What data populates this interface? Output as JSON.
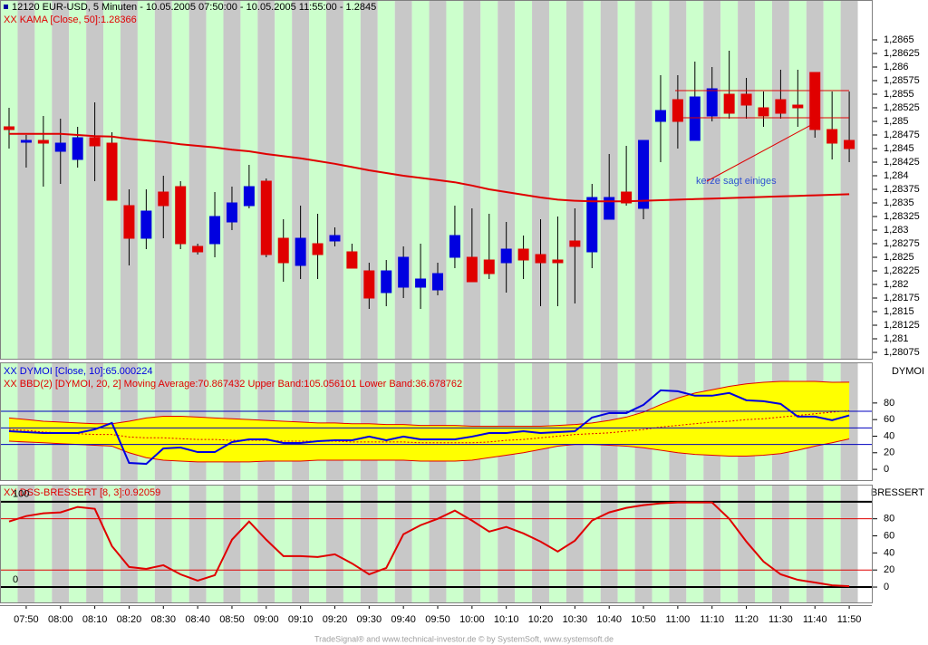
{
  "chart_data": [
    {
      "type": "candlestick",
      "title": "12120  EUR-USD, 5 Minuten - 10.05.2005 07:50:00 - 10.05.2005 11:55:00 - 1.2845",
      "annotation": "kerze sagt  einiges",
      "categories": [
        null,
        "07:50",
        null,
        "08:00",
        null,
        "08:10",
        null,
        "08:20",
        null,
        "08:30",
        null,
        "08:40",
        null,
        "08:50",
        null,
        "09:00",
        null,
        "09:10",
        null,
        "09:20",
        null,
        "09:30",
        null,
        "09:40",
        null,
        "09:50",
        null,
        "10:00",
        null,
        "10:10",
        null,
        "10:20",
        null,
        "10:30",
        null,
        "10:40",
        null,
        "10:50",
        null,
        "11:00",
        null,
        "11:10",
        null,
        "11:20",
        null,
        "11:30",
        null,
        "11:40",
        null,
        "11:50"
      ],
      "open": [
        1.2849,
        1.28465,
        1.28465,
        1.28445,
        1.2843,
        1.2847,
        1.2846,
        1.28345,
        1.28285,
        1.2837,
        1.2838,
        1.2827,
        1.28275,
        1.28315,
        1.28345,
        1.2839,
        1.28285,
        1.28235,
        1.28275,
        1.2828,
        1.2826,
        1.28225,
        1.28185,
        1.28195,
        1.28195,
        1.2819,
        1.2825,
        1.2825,
        1.28245,
        1.2824,
        1.28265,
        1.28255,
        1.28245,
        1.2828,
        1.2826,
        1.2832,
        1.2837,
        1.2834,
        1.285,
        1.2854,
        1.28465,
        1.2851,
        1.2855,
        1.2855,
        1.28525,
        1.2854,
        1.2853,
        1.2859,
        1.28485,
        1.28465
      ],
      "high": [
        1.28525,
        1.28475,
        1.2851,
        1.28505,
        1.2849,
        1.28535,
        1.2848,
        1.28375,
        1.28375,
        1.284,
        1.2839,
        1.28275,
        1.2837,
        1.2838,
        1.2842,
        1.28395,
        1.2832,
        1.28345,
        1.2833,
        1.28305,
        1.28275,
        1.2824,
        1.28245,
        1.2827,
        1.28275,
        1.2824,
        1.28345,
        1.2834,
        1.2833,
        1.28315,
        1.2829,
        1.2832,
        1.28325,
        1.2834,
        1.28385,
        1.2844,
        1.28455,
        1.28465,
        1.28585,
        1.28585,
        1.2861,
        1.286,
        1.2863,
        1.2858,
        1.28555,
        1.28595,
        1.28595,
        1.2859,
        1.28555,
        1.28555
      ],
      "low": [
        1.2845,
        1.28415,
        1.2838,
        1.28385,
        1.28415,
        1.2839,
        1.28355,
        1.28235,
        1.28265,
        1.28285,
        1.28265,
        1.28255,
        1.2825,
        1.283,
        1.2834,
        1.2825,
        1.28205,
        1.2821,
        1.2821,
        1.2827,
        1.2823,
        1.28155,
        1.2816,
        1.28175,
        1.28155,
        1.2818,
        1.2823,
        1.28205,
        1.2821,
        1.28185,
        1.2821,
        1.2816,
        1.2816,
        1.28165,
        1.2823,
        1.2832,
        1.28345,
        1.2832,
        1.28425,
        1.2845,
        1.28465,
        1.285,
        1.28505,
        1.28505,
        1.2849,
        1.28505,
        1.2849,
        1.2847,
        1.2843,
        1.28425
      ],
      "close": [
        1.28485,
        1.28465,
        1.2846,
        1.2846,
        1.2847,
        1.28455,
        1.28355,
        1.28285,
        1.28335,
        1.28345,
        1.28275,
        1.2826,
        1.28325,
        1.2835,
        1.2838,
        1.28255,
        1.2824,
        1.28285,
        1.28255,
        1.2829,
        1.2823,
        1.28175,
        1.28225,
        1.2825,
        1.2821,
        1.2822,
        1.2829,
        1.28205,
        1.2822,
        1.28265,
        1.28245,
        1.2824,
        1.2824,
        1.2827,
        1.2836,
        1.2836,
        1.2835,
        1.28465,
        1.2852,
        1.285,
        1.28545,
        1.2856,
        1.28515,
        1.2853,
        1.2851,
        1.28515,
        1.28525,
        1.28485,
        1.2846,
        1.2845
      ],
      "up_color": "#0000e0",
      "down_color": "#e00000",
      "series": [
        {
          "name": "XX KAMA [Close, 50]:1.28366",
          "color": "#e00000",
          "values": [
            1.28477,
            1.28477,
            1.28477,
            1.28477,
            1.28475,
            1.28473,
            1.28472,
            1.28468,
            1.28465,
            1.28462,
            1.28458,
            1.28455,
            1.28452,
            1.28448,
            1.28445,
            1.2844,
            1.28436,
            1.28432,
            1.28427,
            1.28422,
            1.28416,
            1.2841,
            1.28405,
            1.284,
            1.28396,
            1.28392,
            1.28388,
            1.28382,
            1.28375,
            1.2837,
            1.28365,
            1.2836,
            1.28356,
            1.28354,
            1.28353,
            1.28353,
            1.28353,
            1.28354,
            1.28355,
            1.28356,
            1.28357,
            1.28358,
            1.28359,
            1.2836,
            1.28361,
            1.28362,
            1.28363,
            1.28364,
            1.28365,
            1.28366
          ]
        }
      ],
      "ylim": [
        1.2806,
        1.2871
      ],
      "yticks": [
        {
          "value": 1.28075,
          "label": "1,28075"
        },
        {
          "value": 1.281,
          "label": "1,281"
        },
        {
          "value": 1.28125,
          "label": "1,28125"
        },
        {
          "value": 1.2815,
          "label": "1,2815"
        },
        {
          "value": 1.28175,
          "label": "1,28175"
        },
        {
          "value": 1.282,
          "label": "1,282"
        },
        {
          "value": 1.28225,
          "label": "1,28225"
        },
        {
          "value": 1.2825,
          "label": "1,2825"
        },
        {
          "value": 1.28275,
          "label": "1,28275"
        },
        {
          "value": 1.283,
          "label": "1,283"
        },
        {
          "value": 1.28325,
          "label": "1,28325"
        },
        {
          "value": 1.2835,
          "label": "1,2835"
        },
        {
          "value": 1.28375,
          "label": "1,28375"
        },
        {
          "value": 1.284,
          "label": "1,284"
        },
        {
          "value": 1.28425,
          "label": "1,28425"
        },
        {
          "value": 1.2845,
          "label": "1,2845"
        },
        {
          "value": 1.28475,
          "label": "1,28475"
        },
        {
          "value": 1.285,
          "label": "1,285"
        },
        {
          "value": 1.28525,
          "label": "1,28525"
        },
        {
          "value": 1.2855,
          "label": "1,2855"
        },
        {
          "value": 1.28575,
          "label": "1,28575"
        },
        {
          "value": 1.286,
          "label": "1,286"
        },
        {
          "value": 1.28625,
          "label": "1,28625"
        },
        {
          "value": 1.2865,
          "label": "1,2865"
        }
      ]
    },
    {
      "type": "line",
      "panel_label": "DYMOI",
      "series": [
        {
          "name": "XX DYMOI [Close, 10]:65.000224",
          "color": "#0000e0",
          "values": [
            46.0,
            44.9,
            43.8,
            43.8,
            43.8,
            48.2,
            55.9,
            7.7,
            6.6,
            25.2,
            26.3,
            20.8,
            20.8,
            32.9,
            36.2,
            36.2,
            31.8,
            31.8,
            34.0,
            35.1,
            35.1,
            39.5,
            35.1,
            39.5,
            36.2,
            36.2,
            36.2,
            39.5,
            43.8,
            43.8,
            46.0,
            43.8,
            44.9,
            46.0,
            62.5,
            67.9,
            67.9,
            77.8,
            95.3,
            94.2,
            88.8,
            88.8,
            92.1,
            83.3,
            82.2,
            78.9,
            63.6,
            63.6,
            59.2,
            65.0
          ]
        }
      ],
      "band": {
        "name": "XX BBD(2) [DYMOI, 20, 2] Moving Average:70.867432 Upper Band:105.056101 Lower Band:36.678762",
        "fill": "#ffff00",
        "line_color": "#e00000",
        "upper": [
          62,
          60,
          58,
          57,
          56,
          55,
          55,
          58,
          62,
          64,
          64,
          63,
          62,
          61,
          60,
          59,
          58,
          57,
          56,
          56,
          55,
          55,
          54,
          54,
          53,
          53,
          53,
          52,
          52,
          52,
          52,
          52,
          53,
          54,
          56,
          59,
          63,
          69,
          78,
          86,
          92,
          96,
          100,
          103,
          105,
          106,
          106,
          106,
          105,
          105.056101
        ],
        "lower": [
          34,
          33,
          32,
          31,
          30,
          29,
          28,
          20,
          14,
          11,
          10,
          9,
          9,
          9,
          9,
          10,
          10,
          10,
          11,
          11,
          11,
          11,
          11,
          11,
          10,
          10,
          10,
          11,
          14,
          17,
          20,
          24,
          28,
          30,
          30,
          29,
          28,
          26,
          23,
          20,
          18,
          17,
          16,
          16,
          17,
          19,
          23,
          28,
          32,
          36.678762
        ],
        "average": [
          48,
          47,
          45,
          44,
          43,
          42,
          42,
          39,
          38,
          38,
          37,
          36,
          36,
          35,
          35,
          35,
          34,
          34,
          34,
          34,
          33,
          33,
          33,
          33,
          32,
          32,
          32,
          32,
          33,
          35,
          36,
          38,
          40,
          42,
          43,
          44,
          46,
          48,
          51,
          53,
          55,
          57,
          58,
          60,
          61,
          63,
          65,
          67,
          69,
          70.867432
        ]
      },
      "levels": [
        70,
        50,
        30
      ],
      "level_colors": [
        "#0000c0",
        "#0000c0",
        "#0000c0"
      ],
      "ylim": [
        -13,
        129
      ],
      "yticks": [
        0,
        20,
        40,
        60,
        80
      ]
    },
    {
      "type": "line",
      "panel_label": "BRESSERT",
      "series": [
        {
          "name": "XX DSS-BRESSERT [8, 3]:0.92059",
          "color": "#e00000",
          "values": [
            76.8,
            83.2,
            86.4,
            87.5,
            93.9,
            91.7,
            48,
            23.5,
            21.3,
            25.6,
            14.9,
            7.5,
            13.9,
            55.5,
            76.8,
            55.5,
            36.3,
            36.3,
            35.2,
            38.4,
            27.7,
            14.9,
            22.4,
            61.9,
            72.5,
            80,
            89.6,
            77.9,
            65,
            70.4,
            62.9,
            53.3,
            41.6,
            54.4,
            77.9,
            87.5,
            92.8,
            96,
            98.1,
            99.2,
            99.2,
            99.2,
            80,
            53.3,
            29.9,
            14.9,
            8.5,
            5.3,
            2.1,
            0.92059
          ]
        }
      ],
      "levels": [
        100,
        80,
        20,
        0
      ],
      "level_colors": [
        "#000000",
        "#e00000",
        "#e00000",
        "#000000"
      ],
      "ylim": [
        -18,
        120
      ],
      "yticks": [
        0,
        20,
        40,
        60,
        80
      ]
    }
  ],
  "footer": "TradeSignal® and www.technical-investor.de © by  SystemSoft, www.systemsoft.de"
}
